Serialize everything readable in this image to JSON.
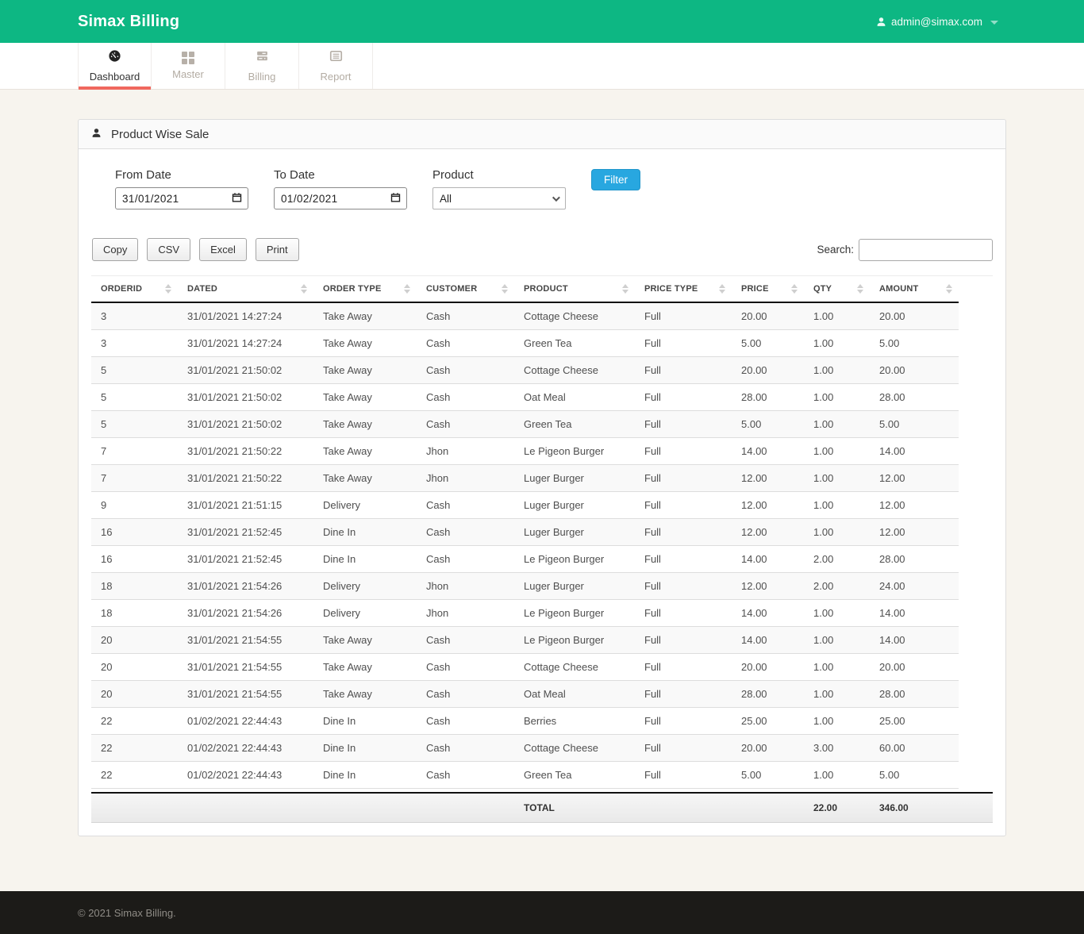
{
  "app": {
    "brand": "Simax Billing",
    "user_email": "admin@simax.com",
    "copyright": "© 2021 Simax Billing."
  },
  "nav": {
    "tabs": [
      {
        "label": "Dashboard",
        "icon": "tachometer-icon",
        "active": true
      },
      {
        "label": "Master",
        "icon": "grid-squares-icon",
        "active": false
      },
      {
        "label": "Billing",
        "icon": "server-stack-icon",
        "active": false
      },
      {
        "label": "Report",
        "icon": "list-alt-icon",
        "active": false
      }
    ]
  },
  "panel": {
    "title": "Product Wise Sale",
    "title_icon": "user-icon"
  },
  "filters": {
    "from_date": {
      "label": "From Date",
      "value": "31/01/2021"
    },
    "to_date": {
      "label": "To Date",
      "value": "01/02/2021"
    },
    "product": {
      "label": "Product",
      "value": "All"
    },
    "filter_button": "Filter"
  },
  "toolbar": {
    "buttons": [
      "Copy",
      "CSV",
      "Excel",
      "Print"
    ],
    "search_label": "Search:",
    "search_value": ""
  },
  "table": {
    "columns": [
      "ORDERID",
      "DATED",
      "ORDER TYPE",
      "CUSTOMER",
      "PRODUCT",
      "PRICE TYPE",
      "PRICE",
      "QTY",
      "AMOUNT"
    ],
    "rows": [
      [
        "3",
        "31/01/2021 14:27:24",
        "Take Away",
        "Cash",
        "Cottage Cheese",
        "Full",
        "20.00",
        "1.00",
        "20.00"
      ],
      [
        "3",
        "31/01/2021 14:27:24",
        "Take Away",
        "Cash",
        "Green Tea",
        "Full",
        "5.00",
        "1.00",
        "5.00"
      ],
      [
        "5",
        "31/01/2021 21:50:02",
        "Take Away",
        "Cash",
        "Cottage Cheese",
        "Full",
        "20.00",
        "1.00",
        "20.00"
      ],
      [
        "5",
        "31/01/2021 21:50:02",
        "Take Away",
        "Cash",
        "Oat Meal",
        "Full",
        "28.00",
        "1.00",
        "28.00"
      ],
      [
        "5",
        "31/01/2021 21:50:02",
        "Take Away",
        "Cash",
        "Green Tea",
        "Full",
        "5.00",
        "1.00",
        "5.00"
      ],
      [
        "7",
        "31/01/2021 21:50:22",
        "Take Away",
        "Jhon",
        "Le Pigeon Burger",
        "Full",
        "14.00",
        "1.00",
        "14.00"
      ],
      [
        "7",
        "31/01/2021 21:50:22",
        "Take Away",
        "Jhon",
        "Luger Burger",
        "Full",
        "12.00",
        "1.00",
        "12.00"
      ],
      [
        "9",
        "31/01/2021 21:51:15",
        "Delivery",
        "Cash",
        "Luger Burger",
        "Full",
        "12.00",
        "1.00",
        "12.00"
      ],
      [
        "16",
        "31/01/2021 21:52:45",
        "Dine In",
        "Cash",
        "Luger Burger",
        "Full",
        "12.00",
        "1.00",
        "12.00"
      ],
      [
        "16",
        "31/01/2021 21:52:45",
        "Dine In",
        "Cash",
        "Le Pigeon Burger",
        "Full",
        "14.00",
        "2.00",
        "28.00"
      ],
      [
        "18",
        "31/01/2021 21:54:26",
        "Delivery",
        "Jhon",
        "Luger Burger",
        "Full",
        "12.00",
        "2.00",
        "24.00"
      ],
      [
        "18",
        "31/01/2021 21:54:26",
        "Delivery",
        "Jhon",
        "Le Pigeon Burger",
        "Full",
        "14.00",
        "1.00",
        "14.00"
      ],
      [
        "20",
        "31/01/2021 21:54:55",
        "Take Away",
        "Cash",
        "Le Pigeon Burger",
        "Full",
        "14.00",
        "1.00",
        "14.00"
      ],
      [
        "20",
        "31/01/2021 21:54:55",
        "Take Away",
        "Cash",
        "Cottage Cheese",
        "Full",
        "20.00",
        "1.00",
        "20.00"
      ],
      [
        "20",
        "31/01/2021 21:54:55",
        "Take Away",
        "Cash",
        "Oat Meal",
        "Full",
        "28.00",
        "1.00",
        "28.00"
      ],
      [
        "22",
        "01/02/2021 22:44:43",
        "Dine In",
        "Cash",
        "Berries",
        "Full",
        "25.00",
        "1.00",
        "25.00"
      ],
      [
        "22",
        "01/02/2021 22:44:43",
        "Dine In",
        "Cash",
        "Cottage Cheese",
        "Full",
        "20.00",
        "3.00",
        "60.00"
      ],
      [
        "22",
        "01/02/2021 22:44:43",
        "Dine In",
        "Cash",
        "Green Tea",
        "Full",
        "5.00",
        "1.00",
        "5.00"
      ]
    ],
    "footer": {
      "label": "TOTAL",
      "qty": "22.00",
      "amount": "346.00"
    }
  },
  "icons": {
    "tachometer-icon": "speedometer gauge",
    "grid-squares-icon": "four squares",
    "server-stack-icon": "stacked server bars",
    "list-alt-icon": "document with lines",
    "user-icon": "person silhouette",
    "caret-down-icon": "down triangle",
    "calendar-icon": "calendar outline",
    "sort-icon": "up and down triangles",
    "chevron-down-icon": "select arrow"
  },
  "colors": {
    "header_green": "#0db783",
    "active_tab_underline": "#f0685e",
    "filter_button_blue": "#28a7e0",
    "page_background": "#f7f4ee",
    "footer_background": "#1c1b18"
  }
}
